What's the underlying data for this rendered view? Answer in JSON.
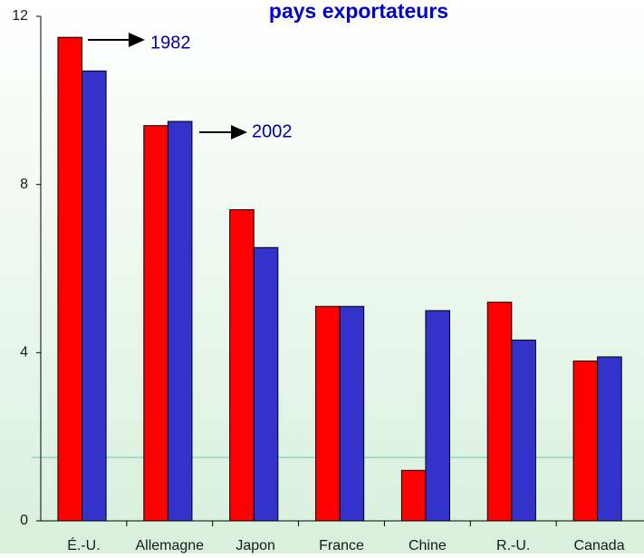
{
  "chart_data": {
    "type": "bar",
    "title": "pays exportateurs",
    "categories": [
      "É.-U.",
      "Allemagne",
      "Japon",
      "France",
      "Chine",
      "R.-U.",
      "Canada"
    ],
    "series": [
      {
        "name": "1982",
        "color": "#ff0000",
        "values": [
          11.5,
          9.4,
          7.4,
          5.1,
          1.2,
          5.2,
          3.8
        ]
      },
      {
        "name": "2002",
        "color": "#3333cc",
        "values": [
          10.7,
          9.5,
          6.5,
          5.1,
          5.0,
          4.3,
          3.9
        ]
      }
    ],
    "ylim": [
      0,
      12
    ],
    "yticks": [
      0,
      4,
      8,
      12
    ]
  }
}
